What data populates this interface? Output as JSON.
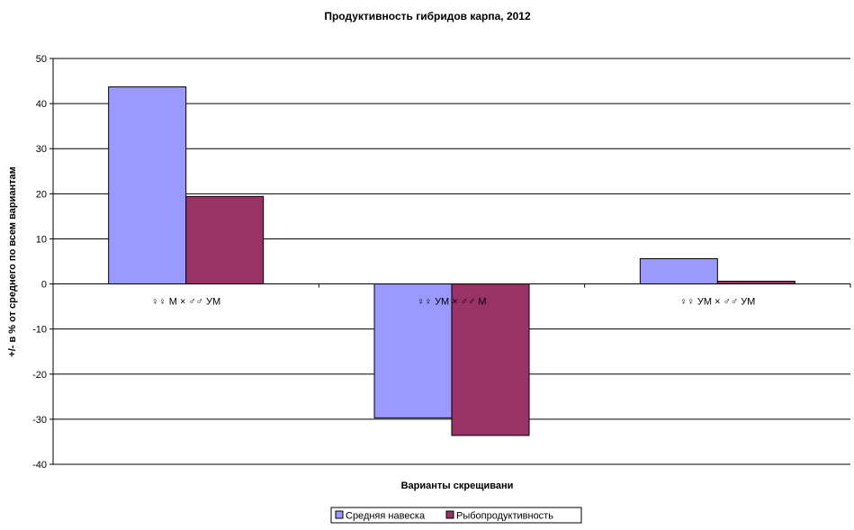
{
  "chart_data": {
    "type": "bar",
    "title": "Продуктивность гибридов карпа, 2012",
    "xlabel": "Варианты скрещивани",
    "ylabel": "+/- в % от среднего по всем вариантам",
    "categories": [
      "♀♀ М × ♂♂ УМ",
      "♀♀ УМ × ♂♂ М",
      "♀♀ УМ × ♂♂ УМ"
    ],
    "series": [
      {
        "name": "Средняя навеска",
        "values": [
          43.7,
          -29.7,
          5.6
        ],
        "color": "#9999FF"
      },
      {
        "name": "Рыбопродуктивность",
        "values": [
          19.4,
          -33.6,
          0.6
        ],
        "color": "#993366"
      }
    ],
    "ylim": [
      -40,
      50
    ],
    "yticks": [
      -40,
      -30,
      -20,
      -10,
      0,
      10,
      20,
      30,
      40,
      50
    ],
    "grid": true,
    "legend": "bottom-center"
  }
}
